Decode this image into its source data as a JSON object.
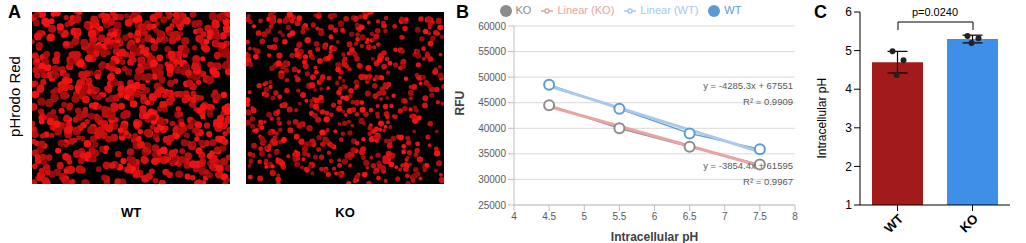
{
  "panel_labels": [
    "A",
    "B",
    "C"
  ],
  "image_panel": {
    "ylabel": "pHrodo Red",
    "labels": [
      "WT",
      "KO"
    ]
  },
  "chart_data": [
    {
      "type": "line",
      "xlabel": "Intracellular pH",
      "ylabel": "RFU",
      "x": [
        4.5,
        5.5,
        6.5,
        7.5
      ],
      "xlim": [
        4,
        8
      ],
      "xticks": [
        4,
        4.5,
        5,
        5.5,
        6,
        6.5,
        7,
        7.5,
        8
      ],
      "ylim": [
        25000,
        60000
      ],
      "yticks": [
        25000,
        30000,
        35000,
        40000,
        45000,
        50000,
        55000,
        60000
      ],
      "grid": true,
      "legend": "top",
      "series": [
        {
          "name": "WT",
          "color": "#5b9bd5",
          "values": [
            48500,
            43800,
            39000,
            35900
          ],
          "marker": "circle",
          "line_style": "solid"
        },
        {
          "name": "KO",
          "color": "#8c8c8c",
          "values": [
            44500,
            40000,
            36400,
            32900
          ],
          "marker": "circle",
          "line_style": "solid"
        },
        {
          "name": "Linear (WT)",
          "color": "#a9c8ea",
          "values": [
            48267,
            43982,
            39696,
            35411
          ],
          "marker": "none",
          "line_style": "solid"
        },
        {
          "name": "Linear (KO)",
          "color": "#e8a3a3",
          "values": [
            44250,
            40396,
            36541,
            32687
          ],
          "marker": "none",
          "line_style": "solid"
        }
      ],
      "annotations": [
        "y = -4285.3x + 67551",
        "R² = 0.9909",
        "y = -3854.4x + 61595",
        "R² = 0.9967"
      ]
    },
    {
      "type": "bar",
      "ylabel": "Intracellular pH",
      "categories": [
        "WT",
        "KO"
      ],
      "values": [
        4.7,
        5.3
      ],
      "errors": [
        0.28,
        0.1
      ],
      "points": [
        [
          4.98,
          4.75,
          4.37
        ],
        [
          5.38,
          5.32,
          5.2
        ]
      ],
      "colors": [
        "#a31a1a",
        "#3d8fe8"
      ],
      "ylim": [
        1,
        6
      ],
      "yticks": [
        1,
        2,
        3,
        4,
        5,
        6
      ],
      "annotations": [
        "p=0.0240"
      ]
    }
  ]
}
